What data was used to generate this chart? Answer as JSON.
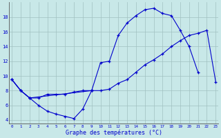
{
  "background_color": "#c8e8e8",
  "grid_color": "#a0c0c0",
  "line_color": "#0000cc",
  "xlabel": "Graphe des températures (°C)",
  "yticks": [
    4,
    6,
    8,
    10,
    12,
    14,
    16,
    18
  ],
  "xticks": [
    0,
    1,
    2,
    3,
    4,
    5,
    6,
    7,
    8,
    9,
    10,
    11,
    12,
    13,
    14,
    15,
    16,
    17,
    18,
    19,
    20,
    21,
    22,
    23
  ],
  "xlim": [
    -0.3,
    23.3
  ],
  "ylim": [
    3.5,
    20.0
  ],
  "line1_x": [
    0,
    1,
    2,
    3,
    4,
    5,
    6,
    7,
    8,
    9,
    10,
    11,
    12,
    13,
    14,
    15,
    16,
    17,
    18,
    19,
    20,
    21
  ],
  "line1_y": [
    9.5,
    8.0,
    7.0,
    7.0,
    7.5,
    7.5,
    7.5,
    7.8,
    8.0,
    8.0,
    11.8,
    12.0,
    15.5,
    17.2,
    18.2,
    19.0,
    19.2,
    18.5,
    18.2,
    16.2,
    14.0,
    10.5
  ],
  "line2_x": [
    0,
    1,
    2,
    9,
    10,
    11,
    12,
    13,
    14,
    15,
    16,
    17,
    18,
    19,
    20,
    21,
    22,
    23
  ],
  "line2_y": [
    9.5,
    8.0,
    7.0,
    8.0,
    8.0,
    8.2,
    9.0,
    9.5,
    10.5,
    11.5,
    12.2,
    13.0,
    14.0,
    14.8,
    15.5,
    15.8,
    16.2,
    9.2
  ],
  "line3_x": [
    0,
    1,
    2,
    3,
    4,
    5,
    6,
    7,
    8,
    9
  ],
  "line3_y": [
    9.5,
    8.0,
    7.0,
    6.0,
    5.2,
    4.8,
    4.5,
    4.2,
    5.5,
    8.0
  ]
}
